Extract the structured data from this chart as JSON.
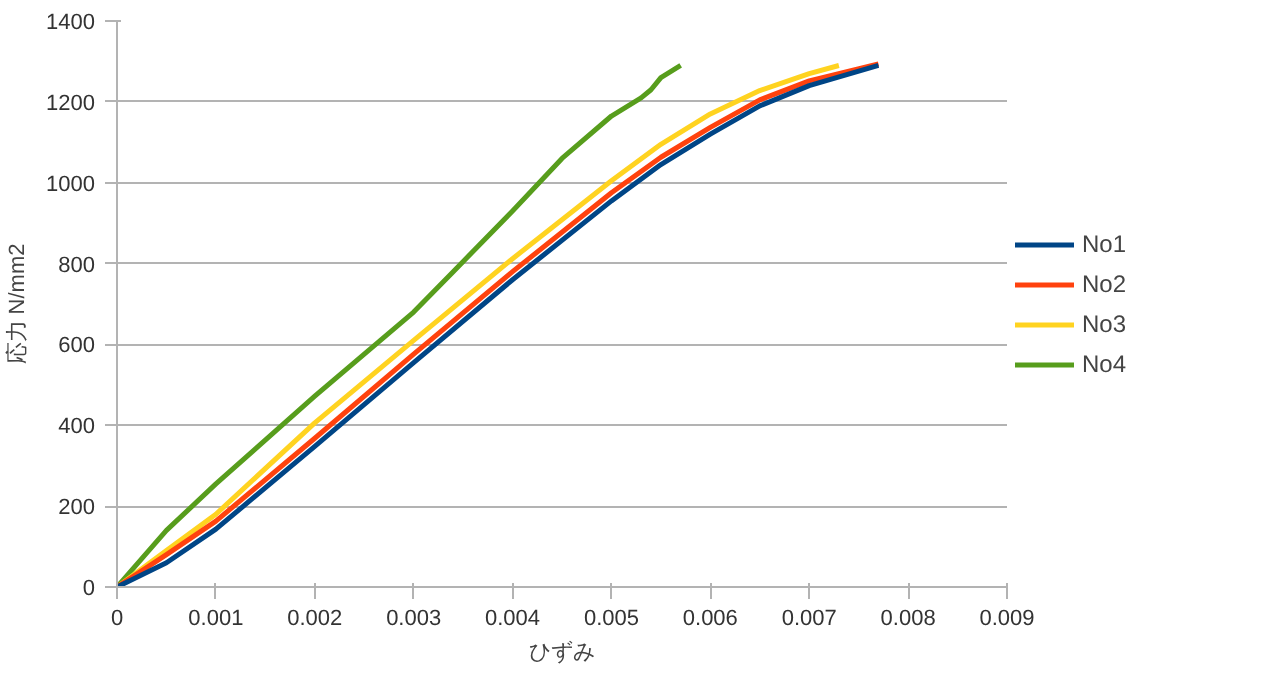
{
  "chart_data": {
    "type": "line",
    "xlabel": "ひずみ",
    "ylabel": "応力 N/mm2",
    "xlim": [
      0,
      0.009
    ],
    "ylim": [
      0,
      1400
    ],
    "xticks": [
      0,
      0.001,
      0.002,
      0.003,
      0.004,
      0.005,
      0.006,
      0.007,
      0.008,
      0.009
    ],
    "yticks": [
      0,
      200,
      400,
      600,
      800,
      1000,
      1200,
      1400
    ],
    "grid": "y",
    "legend": "right",
    "marker": "none",
    "line_style": "solid",
    "series": [
      {
        "name": "No1",
        "color": "#004586",
        "x": [
          0,
          0.0005,
          0.001,
          0.002,
          0.003,
          0.004,
          0.005,
          0.0055,
          0.006,
          0.0065,
          0.007,
          0.0077
        ],
        "values": [
          0,
          60,
          143,
          348,
          555,
          760,
          955,
          1045,
          1120,
          1190,
          1240,
          1290
        ]
      },
      {
        "name": "No2",
        "color": "#ff420e",
        "x": [
          0,
          0.0005,
          0.001,
          0.002,
          0.003,
          0.004,
          0.005,
          0.0055,
          0.006,
          0.0065,
          0.007,
          0.0077
        ],
        "values": [
          0,
          80,
          163,
          368,
          576,
          780,
          975,
          1063,
          1137,
          1205,
          1252,
          1294
        ]
      },
      {
        "name": "No3",
        "color": "#ffd320",
        "x": [
          0,
          0.0005,
          0.001,
          0.002,
          0.003,
          0.004,
          0.005,
          0.0055,
          0.006,
          0.0065,
          0.007,
          0.0073
        ],
        "values": [
          0,
          90,
          180,
          406,
          610,
          812,
          1005,
          1095,
          1170,
          1228,
          1270,
          1290
        ]
      },
      {
        "name": "No4",
        "color": "#579d1c",
        "x": [
          0,
          0.0005,
          0.001,
          0.002,
          0.003,
          0.0034,
          0.004,
          0.0045,
          0.005,
          0.0053,
          0.0054,
          0.0055,
          0.0057
        ],
        "values": [
          0,
          140,
          255,
          472,
          680,
          780,
          930,
          1060,
          1165,
          1210,
          1230,
          1260,
          1290
        ]
      }
    ]
  }
}
